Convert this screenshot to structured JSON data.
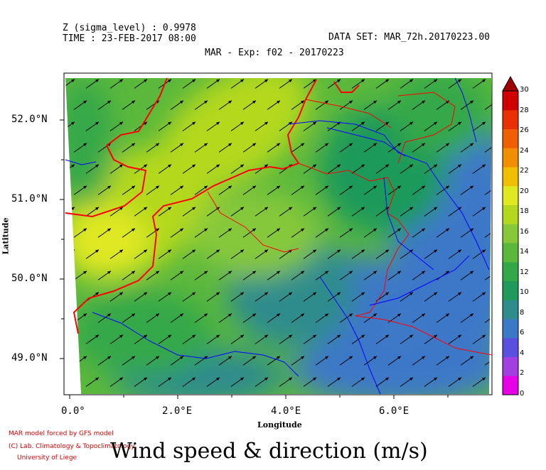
{
  "header": {
    "z_line": "Z (sigma_level) : 0.9978",
    "time_line": "TIME : 23-FEB-2017 08:00",
    "dataset": "DATA SET: MAR_72h.20170223.00",
    "subtitle": "MAR - Exp: f02 - 20170223"
  },
  "axes": {
    "xlabel": "Longitude",
    "ylabel": "Latitude",
    "xticks": [
      "0.0°",
      "2.0°E",
      "4.0°E",
      "6.0°E"
    ],
    "yticks": [
      "52.0°N",
      "51.0°N",
      "50.0°N",
      "49.0°N"
    ],
    "lon_range": [
      -0.2,
      7.8
    ],
    "lat_range": [
      48.55,
      52.55
    ]
  },
  "title": "Wind speed & direction (m/s)",
  "credits": {
    "line1": "MAR model forced by GFS model",
    "line2": "(C) Lab. Climatology & Topoclimatology",
    "line3": "University of Liege"
  },
  "colorbar": {
    "ticks": [
      "30",
      "28",
      "26",
      "24",
      "22",
      "20",
      "18",
      "16",
      "14",
      "12",
      "10",
      "8",
      "6",
      "4",
      "2",
      "0"
    ],
    "colors": [
      "#e600e6",
      "#a040e0",
      "#5a50e0",
      "#3c78c8",
      "#2e8c8c",
      "#1f9a5a",
      "#34a848",
      "#5bb83c",
      "#86c83a",
      "#b4d81e",
      "#e0e820",
      "#f0c000",
      "#f09000",
      "#f06000",
      "#e83000",
      "#d00000"
    ],
    "top_color": "#a00000"
  },
  "map_colors": {
    "border_color": "#ff0000",
    "river_color": "#0000ff",
    "arrow_color": "#000000"
  }
}
